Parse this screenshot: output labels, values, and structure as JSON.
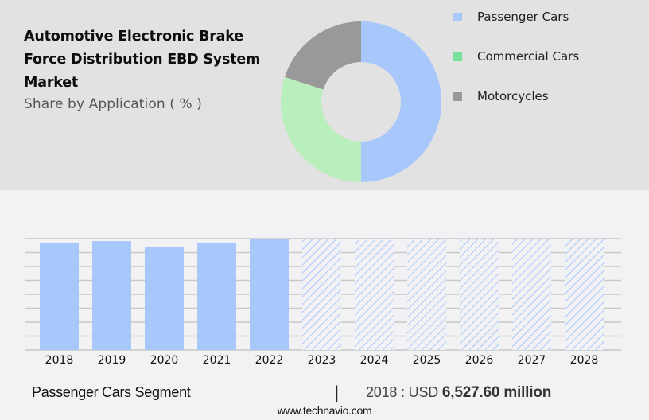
{
  "header": {
    "title": "Automotive Electronic Brake Force Distribution EBD System Market",
    "subtitle": "Share by Application ( % )"
  },
  "legend": {
    "items": [
      {
        "label": "Passenger Cars",
        "color": "#a8c8fc"
      },
      {
        "label": "Commercial Cars",
        "color": "#77e09a"
      },
      {
        "label": "Motorcycles",
        "color": "#999999"
      }
    ]
  },
  "footer": {
    "segment": "Passenger Cars Segment",
    "divider": "|",
    "value_prefix": "2018 : USD",
    "value_bold": "6,527.60 million",
    "url": "www.technavio.com"
  },
  "colors": {
    "top_panel_bg": "#e2e2e2",
    "bottom_bg": "#f2f2f4",
    "bar_fill": "#a8c8fc",
    "gridline": "#c8c8c8",
    "donut_passenger": "#a8c8fc",
    "donut_commercial": "#b8efbd",
    "donut_motorcycles": "#999999"
  },
  "chart_data": [
    {
      "type": "pie",
      "title": "Automotive Electronic Brake Force Distribution EBD System Market",
      "subtitle": "Share by Application ( % )",
      "donut": true,
      "categories": [
        "Passenger Cars",
        "Commercial Cars",
        "Motorcycles"
      ],
      "values": [
        50,
        30,
        20
      ],
      "colors": [
        "#a8c8fc",
        "#b8efbd",
        "#999999"
      ],
      "legend_position": "right"
    },
    {
      "type": "bar",
      "title": "Passenger Cars Segment",
      "categories": [
        "2018",
        "2019",
        "2020",
        "2021",
        "2022",
        "2023",
        "2024",
        "2025",
        "2026",
        "2027",
        "2028"
      ],
      "values": [
        6527.6,
        6670,
        6330,
        6580,
        6820,
        null,
        null,
        null,
        null,
        null,
        null
      ],
      "forecast": [
        false,
        false,
        false,
        false,
        false,
        true,
        true,
        true,
        true,
        true,
        true
      ],
      "forecast_style": "hatched",
      "annotation": "2018 : USD 6,527.60 million",
      "xlabel": "",
      "ylabel": "",
      "y_tick_labels_visible": false,
      "grid": true,
      "gridlines": 8,
      "ylim": [
        0,
        6820
      ]
    }
  ]
}
